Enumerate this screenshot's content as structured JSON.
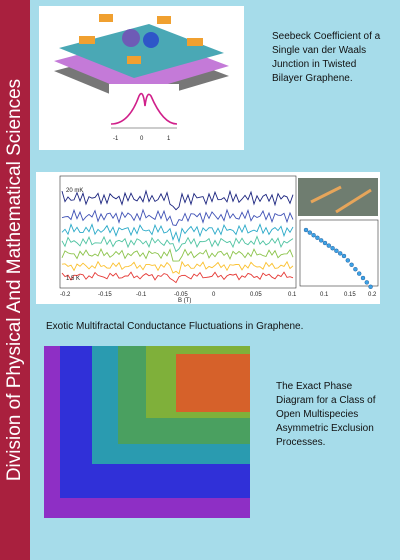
{
  "sidebar": {
    "title": "Division of Physical And Mathematical Sciences"
  },
  "features": [
    {
      "caption": "Seebeck Coefficient of a Single van der Waals Junction in Twisted Bilayer Graphene."
    },
    {
      "caption": "Exotic Multifractal Conductance Fluctuations in Graphene."
    },
    {
      "caption": "The Exact Phase Diagram for a Class of Open Multispecies Asymmetric Exclusion Processes."
    }
  ],
  "figure2": {
    "label_top": "20 mK",
    "label_bottom": "1.5 K",
    "xlabel": "B (T)",
    "xticks": [
      "-0.2",
      "-0.15",
      "-0.1",
      "-0.05",
      "0",
      "0.05",
      "0.1"
    ],
    "inset_xticks": [
      "0.1",
      "0.15",
      "0.2"
    ]
  },
  "figure1": {
    "xticks": [
      "-1",
      "0",
      "1"
    ]
  },
  "colors": {
    "sidebar": "#a9203e",
    "background": "#a6dcea",
    "traces": [
      "#1a237e",
      "#3f51b5",
      "#2aa9c8",
      "#4fc3a1",
      "#8bc34a",
      "#fbc02d",
      "#e53935"
    ]
  }
}
